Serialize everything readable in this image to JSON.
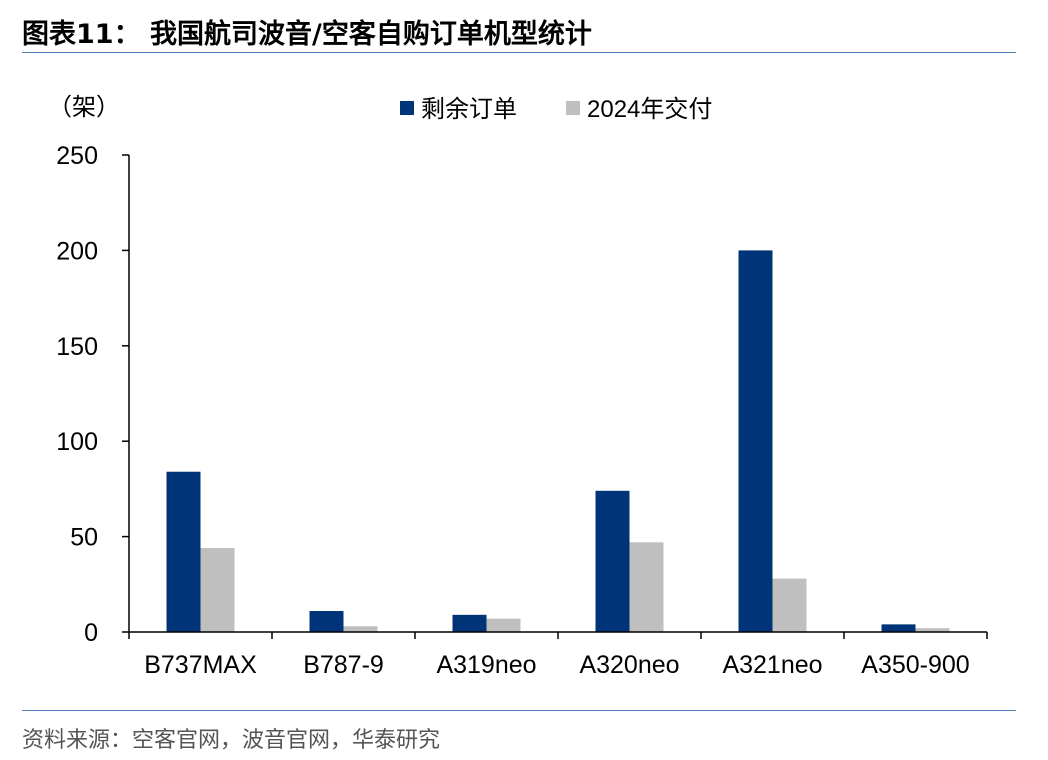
{
  "figure": {
    "title": "图表11：  我国航司波音/空客自购订单机型统计",
    "source": "资料来源：空客官网，波音官网，华泰研究"
  },
  "chart_data": {
    "type": "bar",
    "unit_label": "（架）",
    "categories": [
      "B737MAX",
      "B787-9",
      "A319neo",
      "A320neo",
      "A321neo",
      "A350-900"
    ],
    "series": [
      {
        "name": "剩余订单",
        "color": "#003478",
        "values": [
          84,
          11,
          9,
          74,
          200,
          4
        ]
      },
      {
        "name": "2024年交付",
        "color": "#bfbfbf",
        "values": [
          44,
          3,
          7,
          47,
          28,
          2
        ]
      }
    ],
    "yticks": [
      0,
      50,
      100,
      150,
      200,
      250
    ],
    "ylim": [
      0,
      250
    ],
    "grid": false,
    "legend_position": "top-center"
  }
}
